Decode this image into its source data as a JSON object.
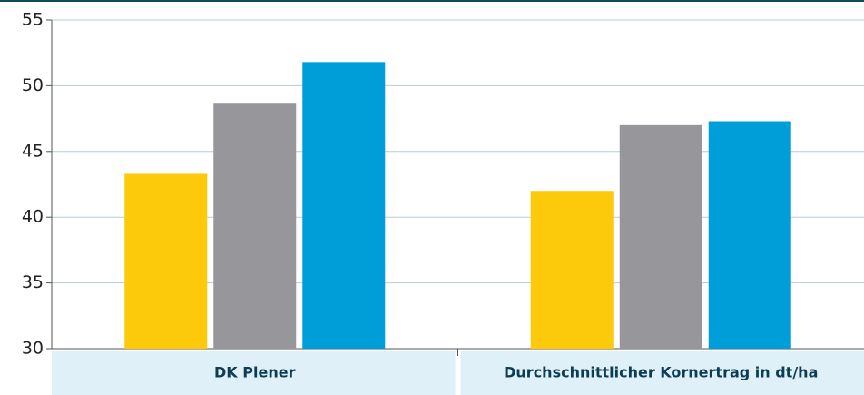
{
  "chart_data": {
    "type": "bar",
    "categories": [
      "DK Plener",
      "Durchschnittlicher Kornertrag in dt/ha"
    ],
    "series": [
      {
        "color": "#fdc90b",
        "values": [
          43.3,
          42.0
        ]
      },
      {
        "color": "#97979b",
        "values": [
          48.7,
          47.0
        ]
      },
      {
        "color": "#009ed8",
        "values": [
          51.8,
          47.3
        ]
      }
    ],
    "ylim": [
      30,
      55
    ],
    "yticks": [
      30,
      35,
      40,
      45,
      50,
      55
    ],
    "grid": true
  }
}
